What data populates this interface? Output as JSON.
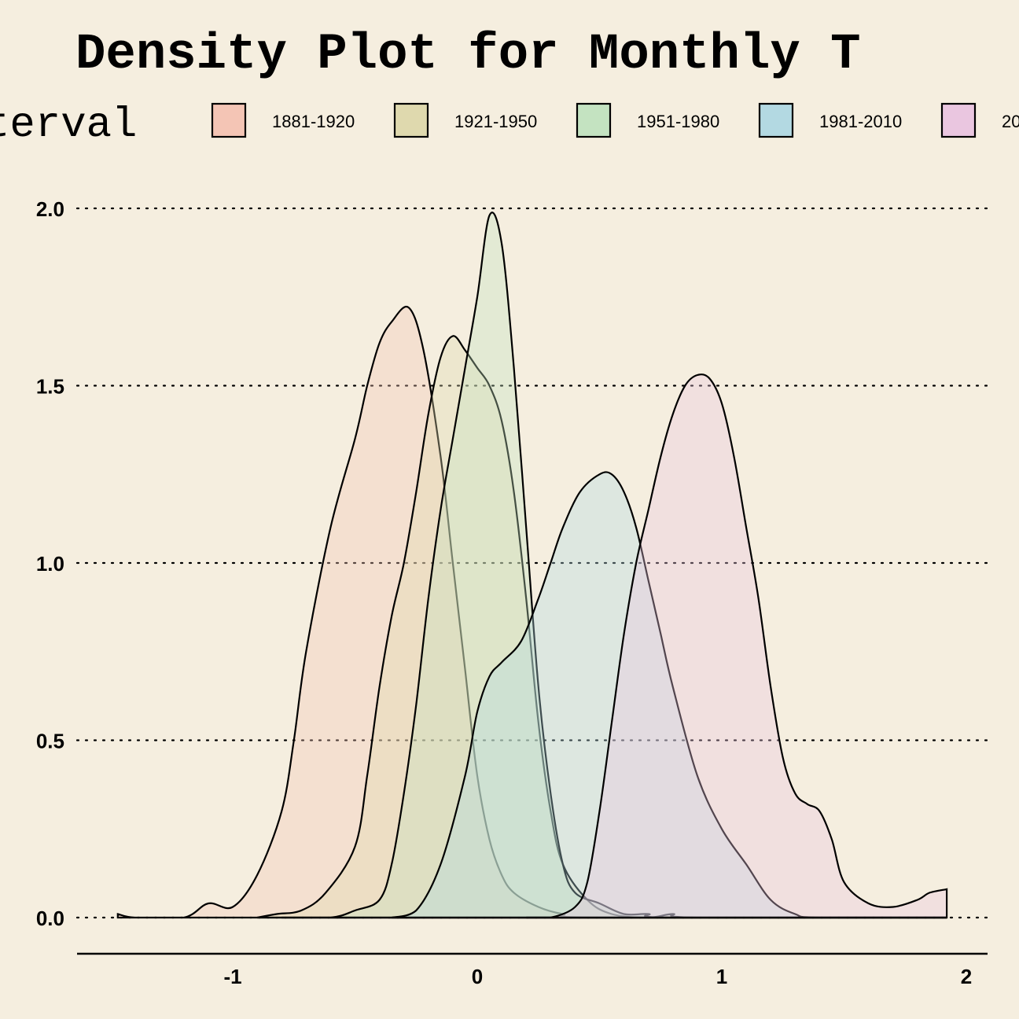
{
  "chart_data": {
    "type": "area",
    "title": "Density Plot for Monthly T",
    "legend_title": "terval",
    "legend_position": "top",
    "xlabel": "",
    "ylabel": "",
    "xlim": [
      -1.65,
      2.1
    ],
    "ylim": [
      -0.1,
      2.1
    ],
    "x_ticks": [
      -1,
      0,
      1,
      2
    ],
    "x_tick_labels": [
      "-1",
      "0",
      "1",
      "2"
    ],
    "y_ticks": [
      0.0,
      0.5,
      1.0,
      1.5,
      2.0
    ],
    "y_tick_labels": [
      "0.0",
      "0.5",
      "1.0",
      "1.5",
      "2.0"
    ],
    "grid": "horizontal dotted",
    "series": [
      {
        "name": "1881-1920",
        "color": "#f4c5b5",
        "points": [
          [
            -1.47,
            0.01
          ],
          [
            -1.4,
            0.0
          ],
          [
            -1.2,
            0.0
          ],
          [
            -1.1,
            0.04
          ],
          [
            -1.0,
            0.03
          ],
          [
            -0.9,
            0.12
          ],
          [
            -0.8,
            0.3
          ],
          [
            -0.75,
            0.5
          ],
          [
            -0.7,
            0.75
          ],
          [
            -0.6,
            1.1
          ],
          [
            -0.5,
            1.35
          ],
          [
            -0.45,
            1.5
          ],
          [
            -0.4,
            1.62
          ],
          [
            -0.35,
            1.68
          ],
          [
            -0.28,
            1.72
          ],
          [
            -0.22,
            1.6
          ],
          [
            -0.15,
            1.3
          ],
          [
            -0.1,
            1.0
          ],
          [
            -0.05,
            0.7
          ],
          [
            0.0,
            0.4
          ],
          [
            0.05,
            0.22
          ],
          [
            0.1,
            0.12
          ],
          [
            0.15,
            0.07
          ],
          [
            0.25,
            0.03
          ],
          [
            0.35,
            0.01
          ],
          [
            0.5,
            0.0
          ],
          [
            1.92,
            0.0
          ]
        ]
      },
      {
        "name": "1921-1950",
        "color": "#dfd9ae",
        "points": [
          [
            -0.9,
            0.0
          ],
          [
            -0.82,
            0.01
          ],
          [
            -0.72,
            0.02
          ],
          [
            -0.62,
            0.07
          ],
          [
            -0.5,
            0.2
          ],
          [
            -0.45,
            0.4
          ],
          [
            -0.4,
            0.65
          ],
          [
            -0.35,
            0.85
          ],
          [
            -0.3,
            1.0
          ],
          [
            -0.25,
            1.2
          ],
          [
            -0.2,
            1.42
          ],
          [
            -0.15,
            1.58
          ],
          [
            -0.1,
            1.64
          ],
          [
            -0.05,
            1.6
          ],
          [
            0.0,
            1.55
          ],
          [
            0.05,
            1.5
          ],
          [
            0.1,
            1.4
          ],
          [
            0.15,
            1.2
          ],
          [
            0.2,
            0.9
          ],
          [
            0.25,
            0.55
          ],
          [
            0.3,
            0.3
          ],
          [
            0.35,
            0.15
          ],
          [
            0.45,
            0.05
          ],
          [
            0.55,
            0.01
          ],
          [
            0.7,
            0.0
          ],
          [
            0.8,
            0.01
          ],
          [
            0.9,
            0.0
          ],
          [
            1.92,
            0.0
          ]
        ]
      },
      {
        "name": "1951-1980",
        "color": "#c4e3c1",
        "points": [
          [
            -0.8,
            0.0
          ],
          [
            -0.6,
            0.0
          ],
          [
            -0.5,
            0.02
          ],
          [
            -0.4,
            0.05
          ],
          [
            -0.35,
            0.15
          ],
          [
            -0.3,
            0.35
          ],
          [
            -0.25,
            0.6
          ],
          [
            -0.2,
            0.9
          ],
          [
            -0.15,
            1.15
          ],
          [
            -0.1,
            1.35
          ],
          [
            -0.05,
            1.55
          ],
          [
            0.0,
            1.75
          ],
          [
            0.05,
            1.98
          ],
          [
            0.1,
            1.9
          ],
          [
            0.15,
            1.55
          ],
          [
            0.2,
            1.1
          ],
          [
            0.25,
            0.65
          ],
          [
            0.3,
            0.35
          ],
          [
            0.35,
            0.15
          ],
          [
            0.4,
            0.07
          ],
          [
            0.5,
            0.04
          ],
          [
            0.6,
            0.01
          ],
          [
            0.7,
            0.01
          ],
          [
            0.8,
            0.0
          ],
          [
            1.92,
            0.0
          ]
        ]
      },
      {
        "name": "1981-2010",
        "color": "#b3d9e2",
        "points": [
          [
            -0.35,
            0.0
          ],
          [
            -0.25,
            0.02
          ],
          [
            -0.15,
            0.15
          ],
          [
            -0.05,
            0.4
          ],
          [
            0.0,
            0.58
          ],
          [
            0.05,
            0.68
          ],
          [
            0.1,
            0.72
          ],
          [
            0.18,
            0.78
          ],
          [
            0.25,
            0.9
          ],
          [
            0.3,
            1.0
          ],
          [
            0.35,
            1.1
          ],
          [
            0.42,
            1.2
          ],
          [
            0.5,
            1.25
          ],
          [
            0.55,
            1.25
          ],
          [
            0.6,
            1.2
          ],
          [
            0.65,
            1.1
          ],
          [
            0.7,
            0.95
          ],
          [
            0.75,
            0.8
          ],
          [
            0.8,
            0.65
          ],
          [
            0.9,
            0.4
          ],
          [
            1.0,
            0.25
          ],
          [
            1.1,
            0.15
          ],
          [
            1.2,
            0.05
          ],
          [
            1.3,
            0.01
          ],
          [
            1.4,
            0.0
          ],
          [
            1.92,
            0.0
          ]
        ]
      },
      {
        "name": "20",
        "color": "#eac6e0",
        "points": [
          [
            0.2,
            0.0
          ],
          [
            0.3,
            0.0
          ],
          [
            0.4,
            0.03
          ],
          [
            0.45,
            0.1
          ],
          [
            0.5,
            0.3
          ],
          [
            0.55,
            0.55
          ],
          [
            0.6,
            0.8
          ],
          [
            0.65,
            1.0
          ],
          [
            0.7,
            1.15
          ],
          [
            0.75,
            1.3
          ],
          [
            0.8,
            1.42
          ],
          [
            0.85,
            1.5
          ],
          [
            0.9,
            1.53
          ],
          [
            0.95,
            1.52
          ],
          [
            1.0,
            1.45
          ],
          [
            1.05,
            1.3
          ],
          [
            1.1,
            1.1
          ],
          [
            1.15,
            0.9
          ],
          [
            1.2,
            0.65
          ],
          [
            1.25,
            0.45
          ],
          [
            1.3,
            0.35
          ],
          [
            1.35,
            0.32
          ],
          [
            1.4,
            0.3
          ],
          [
            1.45,
            0.22
          ],
          [
            1.5,
            0.1
          ],
          [
            1.6,
            0.04
          ],
          [
            1.7,
            0.03
          ],
          [
            1.8,
            0.05
          ],
          [
            1.85,
            0.07
          ],
          [
            1.92,
            0.08
          ]
        ]
      }
    ]
  }
}
